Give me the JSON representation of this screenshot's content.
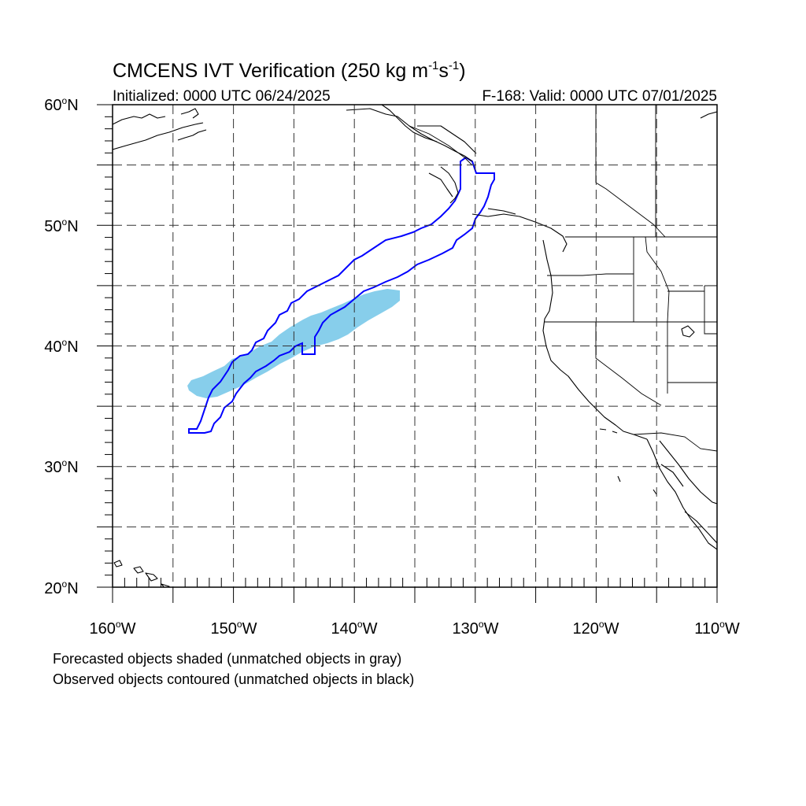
{
  "title": {
    "main_prefix": "CMCENS IVT Verification (250 kg m",
    "sup1": "-1",
    "mid": "s",
    "sup2": "-1",
    "suffix": ")"
  },
  "subtitle_left": "Initialized: 0000 UTC 06/24/2025",
  "subtitle_right": "F-168: Valid: 0000 UTC 07/01/2025",
  "lat_labels": [
    {
      "value": 60,
      "text": "60",
      "suffix": "N"
    },
    {
      "value": 50,
      "text": "50",
      "suffix": "N"
    },
    {
      "value": 40,
      "text": "40",
      "suffix": "N"
    },
    {
      "value": 30,
      "text": "30",
      "suffix": "N"
    },
    {
      "value": 20,
      "text": "20",
      "suffix": "N"
    }
  ],
  "lon_labels": [
    {
      "value": -160,
      "text": "160",
      "suffix": "W"
    },
    {
      "value": -150,
      "text": "150",
      "suffix": "W"
    },
    {
      "value": -140,
      "text": "140",
      "suffix": "W"
    },
    {
      "value": -130,
      "text": "130",
      "suffix": "W"
    },
    {
      "value": -120,
      "text": "120",
      "suffix": "W"
    },
    {
      "value": -110,
      "text": "110",
      "suffix": "W"
    }
  ],
  "map_extent": {
    "lon": [
      -160,
      -110
    ],
    "lat": [
      20,
      60
    ]
  },
  "grid_spacing_deg": 5,
  "colors": {
    "forecast_fill": "#87ceeb",
    "observed_contour": "#0000ff",
    "map_lines": "#000000"
  },
  "notes": {
    "line1": "Forecasted objects shaded (unmatched objects in gray)",
    "line2": "Observed objects contoured (unmatched objects in black)"
  }
}
